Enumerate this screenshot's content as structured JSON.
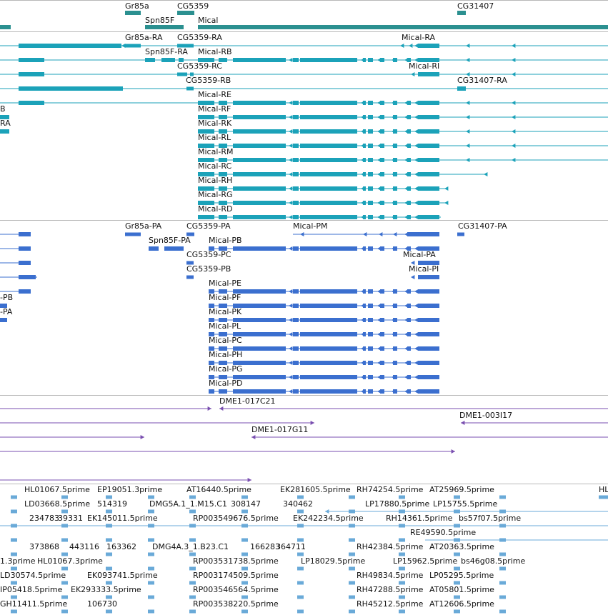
{
  "view": {
    "colors": {
      "gene": "#2b9090",
      "flybase_transcript": "#1ba2b9",
      "protein_coding": "#3b6fcf",
      "cdna_clone": "#7a4fb0",
      "est": "#6aaad8",
      "divider": "#b8b8b8"
    },
    "tracks": [
      {
        "id": "genes",
        "features": [
          {
            "label": "Gr85a"
          },
          {
            "label": "CG5359"
          },
          {
            "label": "Spn85F"
          },
          {
            "label": "Mical"
          },
          {
            "label": "CG31407"
          }
        ]
      },
      {
        "id": "transcripts",
        "features": [
          {
            "label": "Gr85a-RA"
          },
          {
            "label": "CG5359-RA"
          },
          {
            "label": "Mical-RA"
          },
          {
            "label": "Spn85F-RA"
          },
          {
            "label": "Mical-RB"
          },
          {
            "label": "CG5359-RC"
          },
          {
            "label": "Mical-RI"
          },
          {
            "label": "CG5359-RB"
          },
          {
            "label": "CG31407-RA"
          },
          {
            "label": "Mical-RE"
          },
          {
            "label": "B"
          },
          {
            "label": "Mical-RF"
          },
          {
            "label": "RA"
          },
          {
            "label": "Mical-RK"
          },
          {
            "label": "Mical-RL"
          },
          {
            "label": "Mical-RM"
          },
          {
            "label": "Mical-RC"
          },
          {
            "label": "Mical-RH"
          },
          {
            "label": "Mical-RG"
          },
          {
            "label": "Mical-RD"
          }
        ]
      },
      {
        "id": "proteins",
        "features": [
          {
            "label": "Gr85a-PA"
          },
          {
            "label": "CG5359-PA"
          },
          {
            "label": "Mical-PM"
          },
          {
            "label": "CG31407-PA"
          },
          {
            "label": "Spn85F-PA"
          },
          {
            "label": "Mical-PB"
          },
          {
            "label": "CG5359-PC"
          },
          {
            "label": "Mical-PA"
          },
          {
            "label": "CG5359-PB"
          },
          {
            "label": "Mical-PI"
          },
          {
            "label": "Mical-PE"
          },
          {
            "label": "-PB"
          },
          {
            "label": "Mical-PF"
          },
          {
            "label": "-PA"
          },
          {
            "label": "Mical-PK"
          },
          {
            "label": "Mical-PL"
          },
          {
            "label": "Mical-PC"
          },
          {
            "label": "Mical-PH"
          },
          {
            "label": "Mical-PG"
          },
          {
            "label": "Mical-PD"
          }
        ]
      },
      {
        "id": "cdna",
        "features": [
          {
            "label": "DME1-017C21"
          },
          {
            "label": "DME1-003I17"
          },
          {
            "label": "DME1-017G11"
          }
        ]
      },
      {
        "id": "ests",
        "features": [
          {
            "label": "HL01067.5prime"
          },
          {
            "label": "EP19051.3prime"
          },
          {
            "label": "AT16440.5prime"
          },
          {
            "label": "EK281605.5prime"
          },
          {
            "label": "RH74254.5prime"
          },
          {
            "label": "AT25969.5prime"
          },
          {
            "label": "HL"
          },
          {
            "label": "LD03668.5prime"
          },
          {
            "label": "514319"
          },
          {
            "label": "DMG5A.1_1.M15.C1"
          },
          {
            "label": "308147"
          },
          {
            "label": "340462"
          },
          {
            "label": "LP17880.5prime"
          },
          {
            "label": "LP15755.5prime"
          },
          {
            "label": "234783"
          },
          {
            "label": "39331"
          },
          {
            "label": "EK145011.5prime"
          },
          {
            "label": "RP003549676.5prime"
          },
          {
            "label": "EK242234.5prime"
          },
          {
            "label": "RH14361.5prime"
          },
          {
            "label": "bs57f07.5prime"
          },
          {
            "label": "RE49590.5prime"
          },
          {
            "label": "373868"
          },
          {
            "label": "443116"
          },
          {
            "label": "163362"
          },
          {
            "label": "DMG4A.3_1.B23.C1"
          },
          {
            "label": "166283"
          },
          {
            "label": "364711"
          },
          {
            "label": "RH42384.5prime"
          },
          {
            "label": "AT20363.5prime"
          },
          {
            "label": "1.3prime"
          },
          {
            "label": "HL01067.3prime"
          },
          {
            "label": "RP003531738.5prime"
          },
          {
            "label": "LP18029.5prime"
          },
          {
            "label": "LP15962.5prime"
          },
          {
            "label": "bs46g08.5prime"
          },
          {
            "label": "LD30574.5prime"
          },
          {
            "label": "EK093741.5prime"
          },
          {
            "label": "RP003174509.5prime"
          },
          {
            "label": "RH49834.5prime"
          },
          {
            "label": "LP05295.5prime"
          },
          {
            "label": "IP05418.5prime"
          },
          {
            "label": "EK293333.5prime"
          },
          {
            "label": "RP003546564.5prime"
          },
          {
            "label": "RH47288.5prime"
          },
          {
            "label": "AT05801.5prime"
          },
          {
            "label": "GH11411.5prime"
          },
          {
            "label": "106730"
          },
          {
            "label": "RP003538220.5prime"
          },
          {
            "label": "RH45212.5prime"
          },
          {
            "label": "AT12606.5prime"
          }
        ]
      }
    ]
  }
}
